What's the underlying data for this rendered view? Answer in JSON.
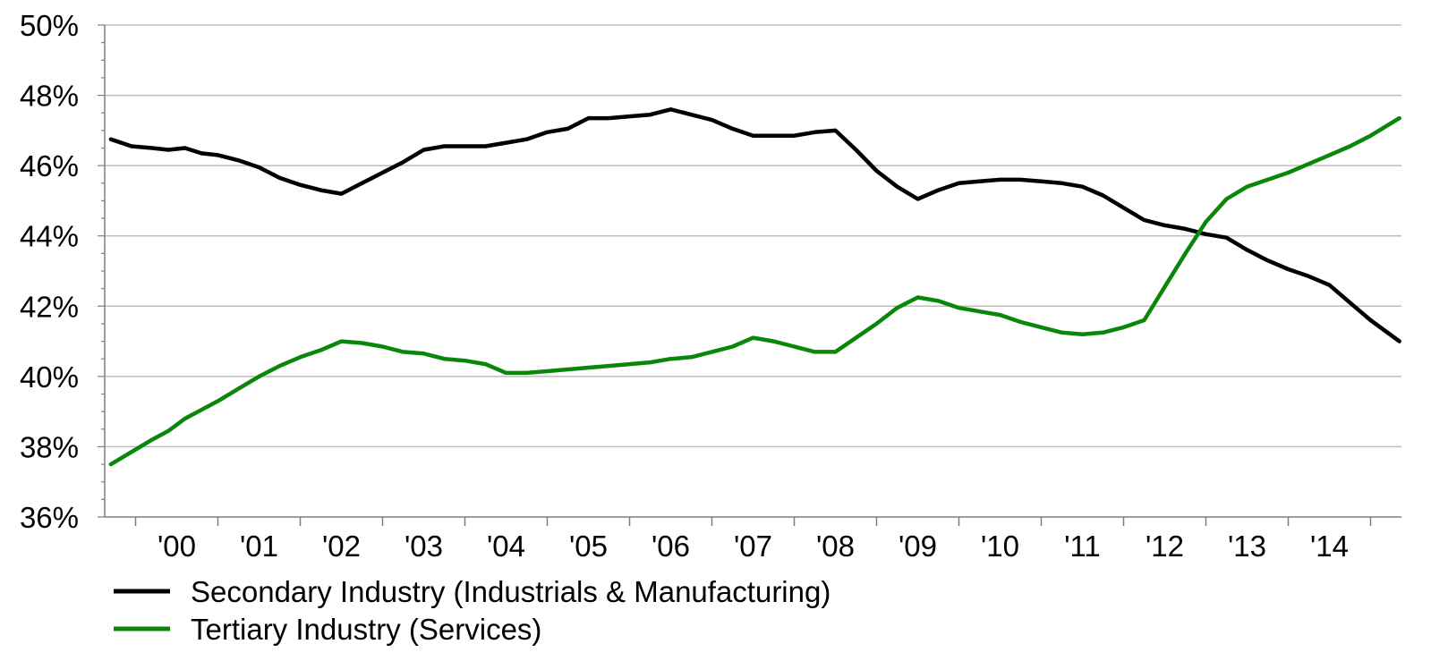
{
  "chart_data": {
    "type": "line",
    "title": "",
    "xlabel": "",
    "ylabel": "",
    "ylim": [
      36,
      50
    ],
    "y_ticks": [
      36,
      38,
      40,
      42,
      44,
      46,
      48,
      50
    ],
    "y_tick_labels": [
      "36%",
      "38%",
      "40%",
      "42%",
      "44%",
      "46%",
      "48%",
      "50%"
    ],
    "x_range": [
      1999.625,
      2015.375
    ],
    "categories": [
      "'00",
      "'01",
      "'02",
      "'03",
      "'04",
      "'05",
      "'06",
      "'07",
      "'08",
      "'09",
      "'10",
      "'11",
      "'12",
      "'13",
      "'14"
    ],
    "category_years": [
      2000,
      2001,
      2002,
      2003,
      2004,
      2005,
      2006,
      2007,
      2008,
      2009,
      2010,
      2011,
      2012,
      2013,
      2014
    ],
    "grid": true,
    "legend_position": "bottom-left",
    "series": [
      {
        "name": "Secondary Industry (Industrials & Manufacturing)",
        "color": "#000000",
        "x": [
          1999.7,
          1999.95,
          2000.2,
          2000.4,
          2000.6,
          2000.8,
          2001.0,
          2001.25,
          2001.5,
          2001.75,
          2002.0,
          2002.25,
          2002.5,
          2002.75,
          2003.0,
          2003.25,
          2003.5,
          2003.75,
          2004.0,
          2004.25,
          2004.5,
          2004.75,
          2005.0,
          2005.25,
          2005.5,
          2005.75,
          2006.0,
          2006.25,
          2006.5,
          2006.75,
          2007.0,
          2007.25,
          2007.5,
          2007.75,
          2008.0,
          2008.25,
          2008.5,
          2008.75,
          2009.0,
          2009.25,
          2009.5,
          2009.75,
          2010.0,
          2010.25,
          2010.5,
          2010.75,
          2011.0,
          2011.25,
          2011.5,
          2011.75,
          2012.0,
          2012.25,
          2012.5,
          2012.75,
          2013.0,
          2013.25,
          2013.5,
          2013.75,
          2014.0,
          2014.25,
          2014.5,
          2014.75,
          2015.0,
          2015.35
        ],
        "values": [
          46.75,
          46.55,
          46.5,
          46.45,
          46.5,
          46.35,
          46.3,
          46.15,
          45.95,
          45.65,
          45.45,
          45.3,
          45.2,
          45.5,
          45.8,
          46.1,
          46.45,
          46.55,
          46.55,
          46.55,
          46.65,
          46.75,
          46.95,
          47.05,
          47.35,
          47.35,
          47.4,
          47.45,
          47.6,
          47.45,
          47.3,
          47.05,
          46.85,
          46.85,
          46.85,
          46.95,
          47.0,
          46.45,
          45.85,
          45.4,
          45.05,
          45.3,
          45.5,
          45.55,
          45.6,
          45.6,
          45.55,
          45.5,
          45.4,
          45.15,
          44.8,
          44.45,
          44.3,
          44.2,
          44.05,
          43.95,
          43.6,
          43.3,
          43.05,
          42.85,
          42.6,
          42.1,
          41.6,
          41.0
        ]
      },
      {
        "name": "Tertiary Industry (Services)",
        "color": "#0a870a",
        "x": [
          1999.7,
          1999.95,
          2000.2,
          2000.4,
          2000.6,
          2000.8,
          2001.0,
          2001.25,
          2001.5,
          2001.75,
          2002.0,
          2002.25,
          2002.5,
          2002.75,
          2003.0,
          2003.25,
          2003.5,
          2003.75,
          2004.0,
          2004.25,
          2004.5,
          2004.75,
          2005.0,
          2005.25,
          2005.5,
          2005.75,
          2006.0,
          2006.25,
          2006.5,
          2006.75,
          2007.0,
          2007.25,
          2007.5,
          2007.75,
          2008.0,
          2008.25,
          2008.5,
          2008.75,
          2009.0,
          2009.25,
          2009.5,
          2009.75,
          2010.0,
          2010.25,
          2010.5,
          2010.75,
          2011.0,
          2011.25,
          2011.5,
          2011.75,
          2012.0,
          2012.25,
          2012.5,
          2012.75,
          2013.0,
          2013.25,
          2013.5,
          2013.75,
          2014.0,
          2014.25,
          2014.5,
          2014.75,
          2015.0,
          2015.35
        ],
        "values": [
          37.5,
          37.85,
          38.2,
          38.45,
          38.8,
          39.05,
          39.3,
          39.65,
          40.0,
          40.3,
          40.55,
          40.75,
          41.0,
          40.95,
          40.85,
          40.7,
          40.65,
          40.5,
          40.45,
          40.35,
          40.1,
          40.1,
          40.15,
          40.2,
          40.25,
          40.3,
          40.35,
          40.4,
          40.5,
          40.55,
          40.7,
          40.85,
          41.1,
          41.0,
          40.85,
          40.7,
          40.7,
          41.1,
          41.5,
          41.95,
          42.25,
          42.15,
          41.95,
          41.85,
          41.75,
          41.55,
          41.4,
          41.25,
          41.2,
          41.25,
          41.4,
          41.6,
          42.55,
          43.5,
          44.4,
          45.05,
          45.4,
          45.6,
          45.8,
          46.05,
          46.3,
          46.55,
          46.85,
          47.35
        ]
      }
    ]
  }
}
